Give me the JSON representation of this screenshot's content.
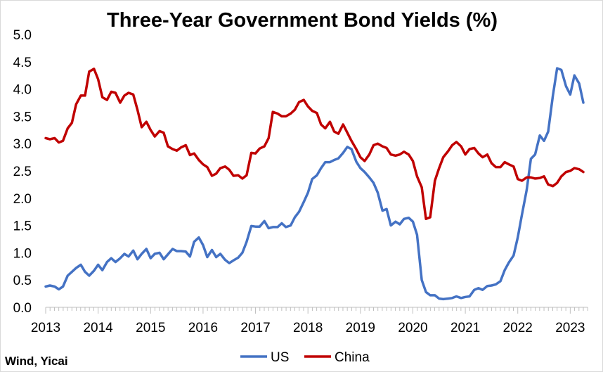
{
  "chart_data": {
    "type": "line",
    "title": "Three-Year Government Bond Yields (%)",
    "source": "Wind, Yicai",
    "ylim": [
      0,
      5
    ],
    "y_ticks": [
      "0.0",
      "0.5",
      "1.0",
      "1.5",
      "2.0",
      "2.5",
      "3.0",
      "3.5",
      "4.0",
      "4.5",
      "5.0"
    ],
    "xlim": [
      2013.0,
      2023.33
    ],
    "x_ticks": [
      "2013",
      "2014",
      "2015",
      "2016",
      "2017",
      "2018",
      "2019",
      "2020",
      "2021",
      "2022",
      "2023"
    ],
    "grid": false,
    "legend": "bottom",
    "series": [
      {
        "name": "US",
        "color": "#4472c4",
        "points": [
          [
            2013.0,
            0.38
          ],
          [
            2013.08,
            0.4
          ],
          [
            2013.17,
            0.38
          ],
          [
            2013.25,
            0.33
          ],
          [
            2013.33,
            0.38
          ],
          [
            2013.42,
            0.58
          ],
          [
            2013.5,
            0.65
          ],
          [
            2013.58,
            0.72
          ],
          [
            2013.67,
            0.78
          ],
          [
            2013.75,
            0.65
          ],
          [
            2013.83,
            0.58
          ],
          [
            2013.92,
            0.67
          ],
          [
            2014.0,
            0.78
          ],
          [
            2014.08,
            0.68
          ],
          [
            2014.17,
            0.83
          ],
          [
            2014.25,
            0.9
          ],
          [
            2014.33,
            0.83
          ],
          [
            2014.42,
            0.9
          ],
          [
            2014.5,
            0.98
          ],
          [
            2014.58,
            0.93
          ],
          [
            2014.67,
            1.04
          ],
          [
            2014.75,
            0.88
          ],
          [
            2014.83,
            0.98
          ],
          [
            2014.92,
            1.07
          ],
          [
            2015.0,
            0.9
          ],
          [
            2015.08,
            0.98
          ],
          [
            2015.17,
            1.0
          ],
          [
            2015.25,
            0.88
          ],
          [
            2015.33,
            0.97
          ],
          [
            2015.42,
            1.07
          ],
          [
            2015.5,
            1.03
          ],
          [
            2015.58,
            1.03
          ],
          [
            2015.67,
            1.02
          ],
          [
            2015.75,
            0.93
          ],
          [
            2015.83,
            1.2
          ],
          [
            2015.92,
            1.28
          ],
          [
            2016.0,
            1.14
          ],
          [
            2016.08,
            0.92
          ],
          [
            2016.17,
            1.05
          ],
          [
            2016.25,
            0.92
          ],
          [
            2016.33,
            0.98
          ],
          [
            2016.42,
            0.87
          ],
          [
            2016.5,
            0.81
          ],
          [
            2016.58,
            0.86
          ],
          [
            2016.67,
            0.91
          ],
          [
            2016.75,
            1.0
          ],
          [
            2016.83,
            1.2
          ],
          [
            2016.92,
            1.49
          ],
          [
            2017.0,
            1.48
          ],
          [
            2017.08,
            1.48
          ],
          [
            2017.17,
            1.58
          ],
          [
            2017.25,
            1.45
          ],
          [
            2017.33,
            1.47
          ],
          [
            2017.42,
            1.47
          ],
          [
            2017.5,
            1.54
          ],
          [
            2017.58,
            1.47
          ],
          [
            2017.67,
            1.5
          ],
          [
            2017.75,
            1.65
          ],
          [
            2017.83,
            1.75
          ],
          [
            2017.92,
            1.93
          ],
          [
            2018.0,
            2.1
          ],
          [
            2018.08,
            2.35
          ],
          [
            2018.17,
            2.42
          ],
          [
            2018.25,
            2.55
          ],
          [
            2018.33,
            2.66
          ],
          [
            2018.42,
            2.66
          ],
          [
            2018.5,
            2.7
          ],
          [
            2018.58,
            2.73
          ],
          [
            2018.67,
            2.83
          ],
          [
            2018.75,
            2.94
          ],
          [
            2018.83,
            2.9
          ],
          [
            2018.92,
            2.67
          ],
          [
            2019.0,
            2.55
          ],
          [
            2019.08,
            2.48
          ],
          [
            2019.17,
            2.38
          ],
          [
            2019.25,
            2.28
          ],
          [
            2019.33,
            2.1
          ],
          [
            2019.42,
            1.77
          ],
          [
            2019.5,
            1.8
          ],
          [
            2019.58,
            1.5
          ],
          [
            2019.67,
            1.57
          ],
          [
            2019.75,
            1.52
          ],
          [
            2019.83,
            1.62
          ],
          [
            2019.92,
            1.64
          ],
          [
            2020.0,
            1.57
          ],
          [
            2020.08,
            1.33
          ],
          [
            2020.17,
            0.5
          ],
          [
            2020.25,
            0.28
          ],
          [
            2020.33,
            0.22
          ],
          [
            2020.42,
            0.22
          ],
          [
            2020.5,
            0.16
          ],
          [
            2020.58,
            0.15
          ],
          [
            2020.67,
            0.16
          ],
          [
            2020.75,
            0.17
          ],
          [
            2020.83,
            0.2
          ],
          [
            2020.92,
            0.17
          ],
          [
            2021.0,
            0.19
          ],
          [
            2021.08,
            0.2
          ],
          [
            2021.17,
            0.32
          ],
          [
            2021.25,
            0.35
          ],
          [
            2021.33,
            0.32
          ],
          [
            2021.42,
            0.39
          ],
          [
            2021.5,
            0.4
          ],
          [
            2021.58,
            0.42
          ],
          [
            2021.67,
            0.48
          ],
          [
            2021.75,
            0.68
          ],
          [
            2021.83,
            0.82
          ],
          [
            2021.92,
            0.95
          ],
          [
            2022.0,
            1.28
          ],
          [
            2022.08,
            1.7
          ],
          [
            2022.17,
            2.15
          ],
          [
            2022.25,
            2.72
          ],
          [
            2022.33,
            2.8
          ],
          [
            2022.42,
            3.15
          ],
          [
            2022.5,
            3.05
          ],
          [
            2022.58,
            3.22
          ],
          [
            2022.67,
            3.88
          ],
          [
            2022.75,
            4.38
          ],
          [
            2022.83,
            4.35
          ],
          [
            2022.92,
            4.05
          ],
          [
            2023.0,
            3.9
          ],
          [
            2023.08,
            4.25
          ],
          [
            2023.17,
            4.1
          ],
          [
            2023.25,
            3.75
          ]
        ]
      },
      {
        "name": "China",
        "color": "#c00000",
        "points": [
          [
            2013.0,
            3.1
          ],
          [
            2013.08,
            3.08
          ],
          [
            2013.17,
            3.1
          ],
          [
            2013.25,
            3.02
          ],
          [
            2013.33,
            3.05
          ],
          [
            2013.42,
            3.28
          ],
          [
            2013.5,
            3.38
          ],
          [
            2013.58,
            3.72
          ],
          [
            2013.67,
            3.88
          ],
          [
            2013.75,
            3.88
          ],
          [
            2013.83,
            4.32
          ],
          [
            2013.92,
            4.37
          ],
          [
            2014.0,
            4.18
          ],
          [
            2014.08,
            3.85
          ],
          [
            2014.17,
            3.8
          ],
          [
            2014.25,
            3.95
          ],
          [
            2014.33,
            3.93
          ],
          [
            2014.42,
            3.75
          ],
          [
            2014.5,
            3.88
          ],
          [
            2014.58,
            3.93
          ],
          [
            2014.67,
            3.9
          ],
          [
            2014.75,
            3.62
          ],
          [
            2014.83,
            3.3
          ],
          [
            2014.92,
            3.4
          ],
          [
            2015.0,
            3.25
          ],
          [
            2015.08,
            3.13
          ],
          [
            2015.17,
            3.23
          ],
          [
            2015.25,
            3.2
          ],
          [
            2015.33,
            2.95
          ],
          [
            2015.42,
            2.9
          ],
          [
            2015.5,
            2.87
          ],
          [
            2015.58,
            2.93
          ],
          [
            2015.67,
            2.97
          ],
          [
            2015.75,
            2.79
          ],
          [
            2015.83,
            2.82
          ],
          [
            2015.92,
            2.7
          ],
          [
            2016.0,
            2.62
          ],
          [
            2016.08,
            2.57
          ],
          [
            2016.17,
            2.41
          ],
          [
            2016.25,
            2.45
          ],
          [
            2016.33,
            2.55
          ],
          [
            2016.42,
            2.58
          ],
          [
            2016.5,
            2.52
          ],
          [
            2016.58,
            2.41
          ],
          [
            2016.67,
            2.42
          ],
          [
            2016.75,
            2.36
          ],
          [
            2016.83,
            2.42
          ],
          [
            2016.92,
            2.83
          ],
          [
            2017.0,
            2.82
          ],
          [
            2017.08,
            2.91
          ],
          [
            2017.17,
            2.95
          ],
          [
            2017.25,
            3.1
          ],
          [
            2017.33,
            3.58
          ],
          [
            2017.42,
            3.55
          ],
          [
            2017.5,
            3.5
          ],
          [
            2017.58,
            3.5
          ],
          [
            2017.67,
            3.55
          ],
          [
            2017.75,
            3.62
          ],
          [
            2017.83,
            3.76
          ],
          [
            2017.92,
            3.8
          ],
          [
            2018.0,
            3.68
          ],
          [
            2018.08,
            3.6
          ],
          [
            2018.17,
            3.56
          ],
          [
            2018.25,
            3.35
          ],
          [
            2018.33,
            3.28
          ],
          [
            2018.42,
            3.4
          ],
          [
            2018.5,
            3.22
          ],
          [
            2018.58,
            3.18
          ],
          [
            2018.67,
            3.35
          ],
          [
            2018.75,
            3.2
          ],
          [
            2018.83,
            3.05
          ],
          [
            2018.92,
            2.9
          ],
          [
            2019.0,
            2.75
          ],
          [
            2019.08,
            2.68
          ],
          [
            2019.17,
            2.8
          ],
          [
            2019.25,
            2.97
          ],
          [
            2019.33,
            3.0
          ],
          [
            2019.42,
            2.95
          ],
          [
            2019.5,
            2.92
          ],
          [
            2019.58,
            2.8
          ],
          [
            2019.67,
            2.78
          ],
          [
            2019.75,
            2.8
          ],
          [
            2019.83,
            2.85
          ],
          [
            2019.92,
            2.8
          ],
          [
            2020.0,
            2.68
          ],
          [
            2020.08,
            2.4
          ],
          [
            2020.17,
            2.2
          ],
          [
            2020.25,
            1.62
          ],
          [
            2020.33,
            1.65
          ],
          [
            2020.42,
            2.32
          ],
          [
            2020.5,
            2.55
          ],
          [
            2020.58,
            2.75
          ],
          [
            2020.67,
            2.86
          ],
          [
            2020.75,
            2.97
          ],
          [
            2020.83,
            3.03
          ],
          [
            2020.92,
            2.95
          ],
          [
            2021.0,
            2.8
          ],
          [
            2021.08,
            2.9
          ],
          [
            2021.17,
            2.92
          ],
          [
            2021.25,
            2.82
          ],
          [
            2021.33,
            2.75
          ],
          [
            2021.42,
            2.8
          ],
          [
            2021.5,
            2.64
          ],
          [
            2021.58,
            2.57
          ],
          [
            2021.67,
            2.57
          ],
          [
            2021.75,
            2.66
          ],
          [
            2021.83,
            2.62
          ],
          [
            2021.92,
            2.58
          ],
          [
            2022.0,
            2.35
          ],
          [
            2022.08,
            2.32
          ],
          [
            2022.17,
            2.38
          ],
          [
            2022.25,
            2.38
          ],
          [
            2022.33,
            2.36
          ],
          [
            2022.42,
            2.37
          ],
          [
            2022.5,
            2.4
          ],
          [
            2022.58,
            2.25
          ],
          [
            2022.67,
            2.22
          ],
          [
            2022.75,
            2.28
          ],
          [
            2022.83,
            2.4
          ],
          [
            2022.92,
            2.48
          ],
          [
            2023.0,
            2.5
          ],
          [
            2023.08,
            2.55
          ],
          [
            2023.17,
            2.53
          ],
          [
            2023.25,
            2.48
          ]
        ]
      }
    ]
  }
}
